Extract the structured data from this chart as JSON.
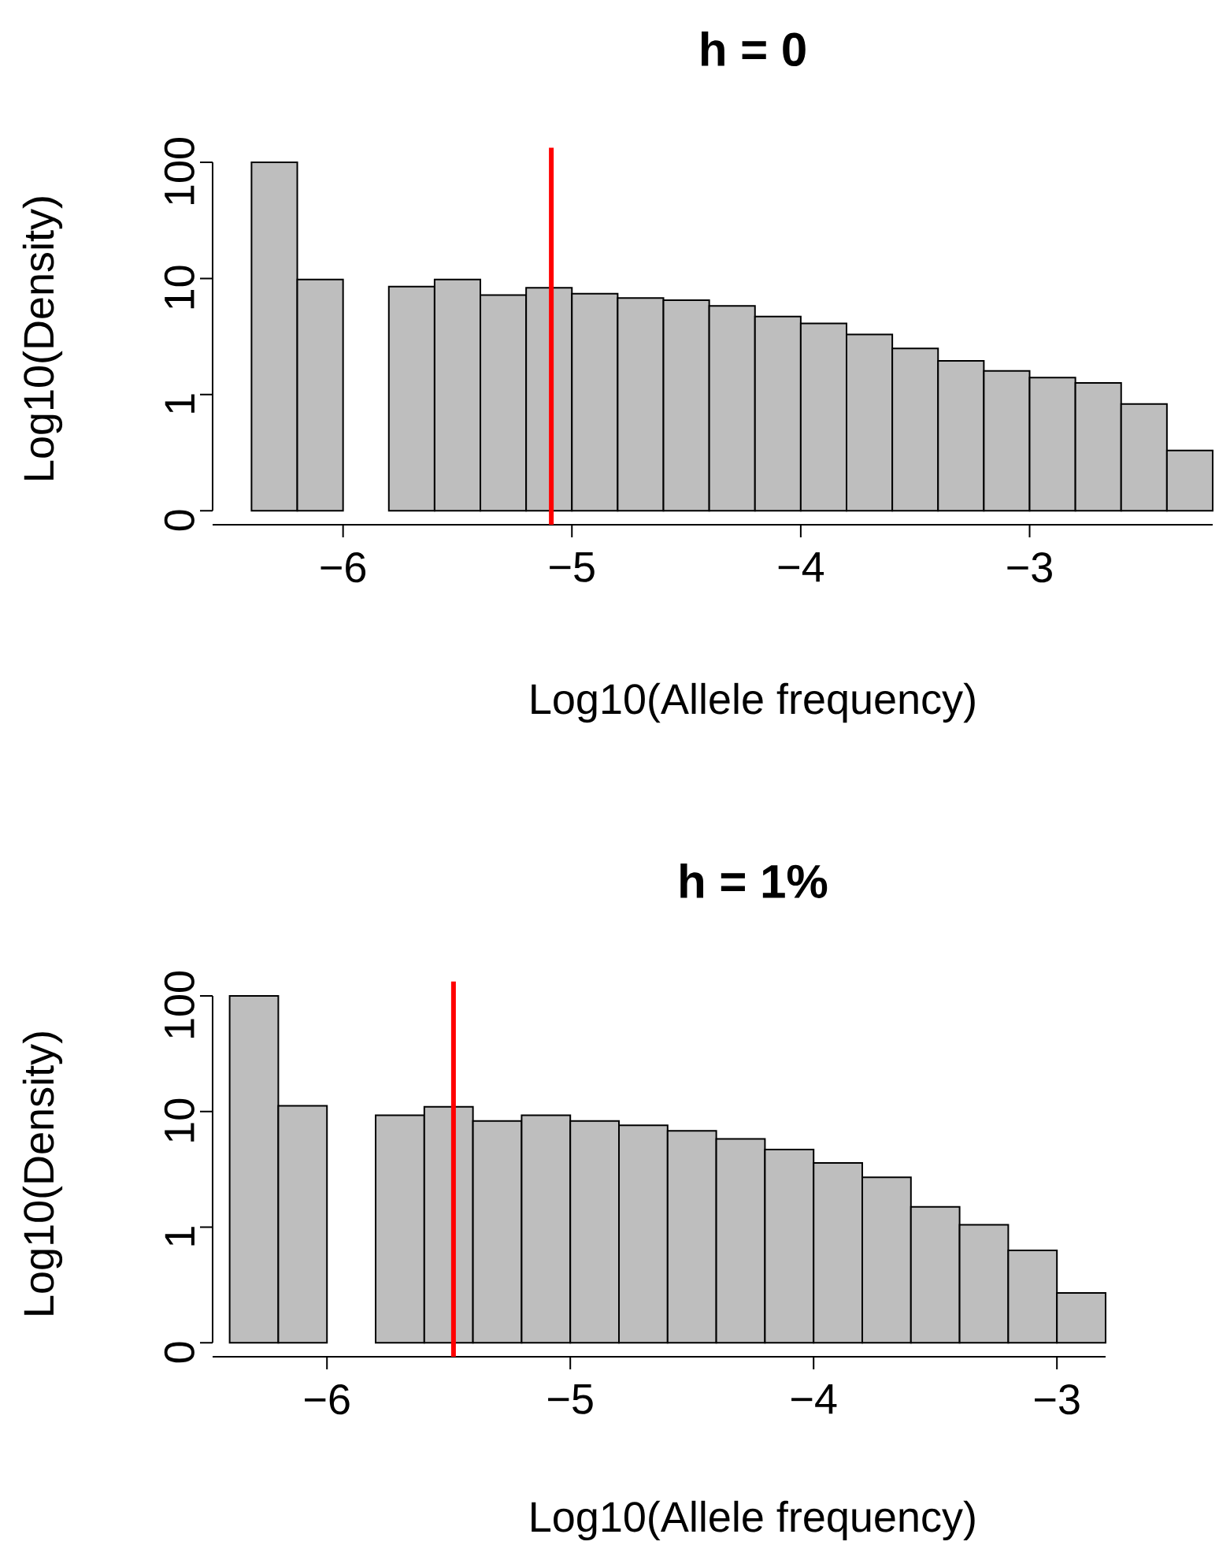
{
  "chart_data": [
    {
      "type": "histogram",
      "title": "h = 0",
      "xlabel": "Log10(Allele frequency)",
      "ylabel": "Log10(Density)",
      "bins": [
        -6.4,
        -6.2,
        -6.0,
        -5.8,
        -5.6,
        -5.4,
        -5.2,
        -5.0,
        -4.8,
        -4.6,
        -4.4,
        -4.2,
        -4.0,
        -3.8,
        -3.6,
        -3.4,
        -3.2,
        -3.0,
        -2.8,
        -2.6,
        -2.4,
        -2.2
      ],
      "values": [
        100,
        9.8,
        null,
        8.5,
        9.8,
        7.2,
        8.3,
        7.4,
        6.8,
        6.5,
        5.8,
        4.7,
        4.1,
        3.3,
        2.5,
        1.95,
        1.6,
        1.4,
        1.26,
        0.83,
        0.33
      ],
      "color": "#bebebe",
      "log": "y",
      "xlim": [
        -6.57,
        -2.2
      ],
      "ylim": [
        0.1,
        100
      ],
      "xticks": [
        {
          "value": -6,
          "label": "−6"
        },
        {
          "value": -5,
          "label": "−5"
        },
        {
          "value": -4,
          "label": "−4"
        },
        {
          "value": -3,
          "label": "−3"
        }
      ],
      "yticks": [
        {
          "value": 0.1,
          "label": "0"
        },
        1,
        10,
        100
      ],
      "ref_lines": [
        {
          "axis": "x",
          "value": -5.09,
          "color": "#ff0000"
        }
      ]
    },
    {
      "type": "histogram",
      "title": "h = 1%",
      "xlabel": "Log10(Allele frequency)",
      "ylabel": "Log10(Density)",
      "bins": [
        -6.4,
        -6.2,
        -6.0,
        -5.8,
        -5.6,
        -5.4,
        -5.2,
        -5.0,
        -4.8,
        -4.6,
        -4.4,
        -4.2,
        -4.0,
        -3.8,
        -3.6,
        -3.4,
        -3.2,
        -3.0,
        -2.8
      ],
      "values": [
        100,
        11.2,
        null,
        9.3,
        11.0,
        8.3,
        9.3,
        8.3,
        7.6,
        6.8,
        5.8,
        4.7,
        3.6,
        2.7,
        1.5,
        1.05,
        0.63,
        0.27
      ],
      "color": "#bebebe",
      "log": "y",
      "xlim": [
        -6.47,
        -2.8
      ],
      "ylim": [
        0.1,
        100
      ],
      "xticks": [
        {
          "value": -6,
          "label": "−6"
        },
        {
          "value": -5,
          "label": "−5"
        },
        {
          "value": -4,
          "label": "−4"
        },
        {
          "value": -3,
          "label": "−3"
        }
      ],
      "yticks": [
        {
          "value": 0.1,
          "label": "0"
        },
        1,
        10,
        100
      ],
      "ref_lines": [
        {
          "axis": "x",
          "value": -5.48,
          "color": "#ff0000"
        }
      ]
    }
  ]
}
